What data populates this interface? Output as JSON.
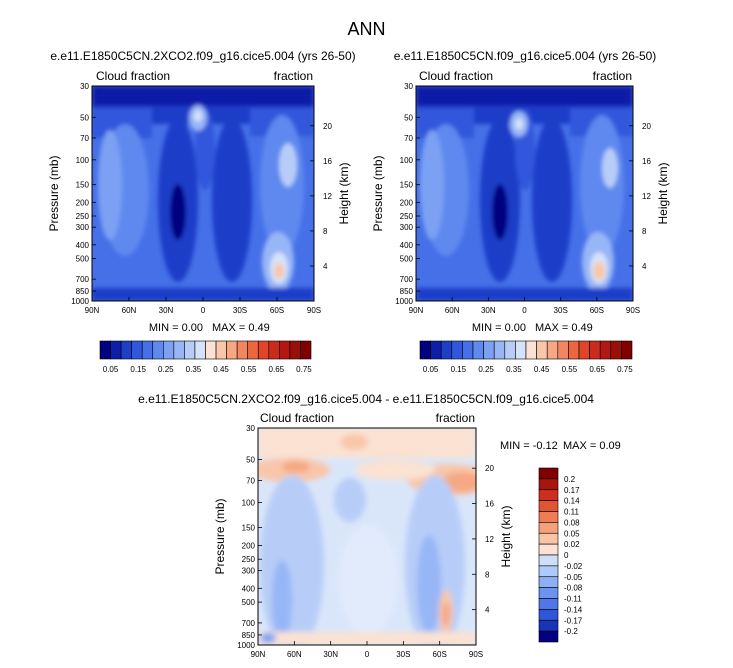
{
  "page_title": "ANN",
  "colors": {
    "blue_seq": [
      "#000080",
      "#0d1fa8",
      "#1f3ec8",
      "#3057dc",
      "#4670e8",
      "#5f89ef",
      "#7ba1f3",
      "#97b6f6",
      "#b7cdf8",
      "#d5e2f9"
    ],
    "red_seq": [
      "#fbe2d2",
      "#f9c6aa",
      "#f6a783",
      "#f2875f",
      "#ec6740",
      "#e0452a",
      "#cb2b1c",
      "#b31712",
      "#991008",
      "#800000"
    ],
    "diff_seq": [
      "#000080",
      "#1a34b8",
      "#3056d8",
      "#4f77e8",
      "#6d93f0",
      "#8db0f5",
      "#aecaf9",
      "#cddff9",
      "#fbe2d2",
      "#f9c4a6",
      "#f5a27c",
      "#ee7d55",
      "#e35532",
      "#cd2f1d",
      "#a8150c",
      "#800000"
    ]
  },
  "chart_data": [
    {
      "type": "heatmap",
      "title": "e.e11.E1850C5CN.2XCO2.f09_g16.cice5.004 (yrs 26-50)",
      "left_label": "Cloud fraction",
      "right_label": "fraction",
      "xlabel": "",
      "ylabel": "Pressure (mb)",
      "ylabel_right": "Height (km)",
      "x_ticks": [
        "90N",
        "60N",
        "30N",
        "0",
        "30S",
        "60S",
        "90S"
      ],
      "y_ticks": [
        "30",
        "50",
        "70",
        "100",
        "150",
        "200",
        "250",
        "300",
        "400",
        "500",
        "700",
        "850",
        "1000"
      ],
      "y_ticks_right": [
        "20",
        "16",
        "12",
        "8",
        "4"
      ],
      "xlim": [
        90,
        -90
      ],
      "ylim": [
        1000,
        30
      ],
      "min_text": "MIN = 0.00",
      "max_text": "MAX = 0.49",
      "colorbar": [
        "0.05",
        "0.15",
        "0.25",
        "0.35",
        "0.45",
        "0.55",
        "0.65",
        "0.75"
      ]
    },
    {
      "type": "heatmap",
      "title": "e.e11.E1850C5CN.f09_g16.cice5.004 (yrs 26-50)",
      "left_label": "Cloud fraction",
      "right_label": "fraction",
      "xlabel": "",
      "ylabel": "Pressure (mb)",
      "ylabel_right": "Height (km)",
      "x_ticks": [
        "90N",
        "60N",
        "30N",
        "0",
        "30S",
        "60S",
        "90S"
      ],
      "y_ticks": [
        "30",
        "50",
        "70",
        "100",
        "150",
        "200",
        "250",
        "300",
        "400",
        "500",
        "700",
        "850",
        "1000"
      ],
      "y_ticks_right": [
        "20",
        "16",
        "12",
        "8",
        "4"
      ],
      "xlim": [
        90,
        -90
      ],
      "ylim": [
        1000,
        30
      ],
      "min_text": "MIN = 0.00",
      "max_text": "MAX = 0.49",
      "colorbar": [
        "0.05",
        "0.15",
        "0.25",
        "0.35",
        "0.45",
        "0.55",
        "0.65",
        "0.75"
      ]
    },
    {
      "type": "heatmap",
      "title": "e.e11.E1850C5CN.2XCO2.f09_g16.cice5.004 - e.e11.E1850C5CN.f09_g16.cice5.004",
      "left_label": "Cloud fraction",
      "right_label": "fraction",
      "xlabel": "",
      "ylabel": "Pressure (mb)",
      "ylabel_right": "Height (km)",
      "x_ticks": [
        "90N",
        "60N",
        "30N",
        "0",
        "30S",
        "60S",
        "90S"
      ],
      "y_ticks": [
        "30",
        "50",
        "70",
        "100",
        "150",
        "200",
        "250",
        "300",
        "400",
        "500",
        "700",
        "850",
        "1000"
      ],
      "y_ticks_right": [
        "20",
        "16",
        "12",
        "8",
        "4"
      ],
      "xlim": [
        90,
        -90
      ],
      "ylim": [
        1000,
        30
      ],
      "min_text": "MIN = -0.12",
      "max_text": "MAX =   0.09",
      "colorbar": [
        "0.2",
        "0.17",
        "0.14",
        "0.11",
        "0.08",
        "0.05",
        "0.02",
        "0",
        "-0.02",
        "-0.05",
        "-0.08",
        "-0.11",
        "-0.14",
        "-0.17",
        "-0.2"
      ]
    }
  ]
}
